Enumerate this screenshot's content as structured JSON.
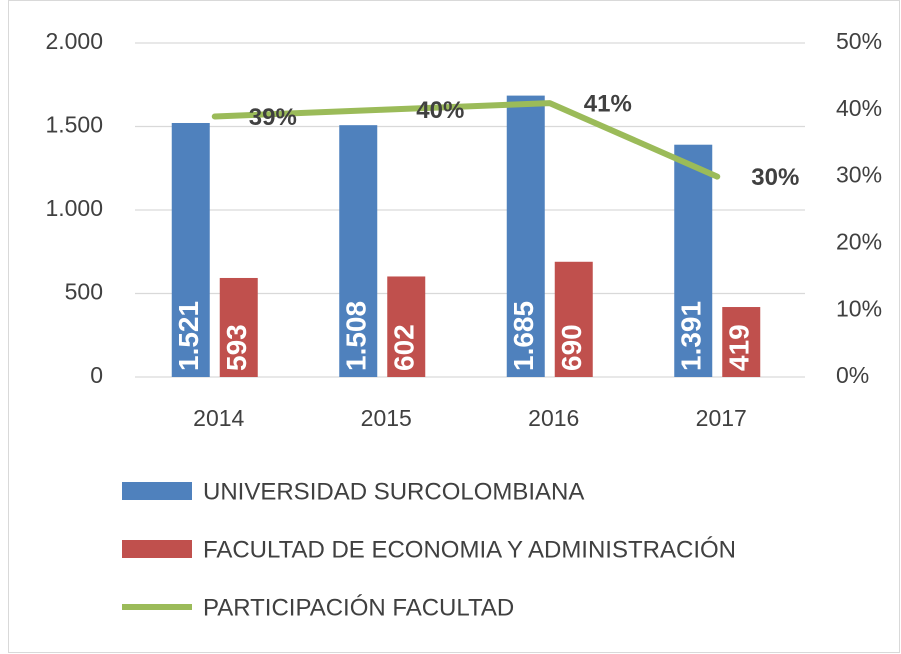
{
  "chart_data": {
    "type": "bar_line",
    "categories": [
      "2014",
      "2015",
      "2016",
      "2017"
    ],
    "series": [
      {
        "name": "UNIVERSIDAD SURCOLOMBIANA",
        "type": "bar",
        "color": "#4f81bd",
        "values": [
          1521,
          1508,
          1685,
          1391
        ],
        "value_labels": [
          "1.521",
          "1.508",
          "1.685",
          "1.391"
        ]
      },
      {
        "name": "FACULTAD DE ECONOMIA Y ADMINISTRACIÓN",
        "type": "bar",
        "color": "#c0504d",
        "values": [
          593,
          602,
          690,
          419
        ]
      },
      {
        "name": "PARTICIPACIÓN FACULTAD",
        "type": "line",
        "axis": "y2",
        "color": "#9bbb59",
        "values": [
          39,
          40,
          41,
          30
        ],
        "value_labels": [
          "39%",
          "40%",
          "41%",
          "30%"
        ]
      }
    ],
    "ylim": [
      0,
      2000
    ],
    "yticks": [
      0,
      500,
      {
        "value": 1000,
        "label": "1.000"
      },
      {
        "value": 1500,
        "label": "1.500"
      },
      {
        "value": 2000,
        "label": "2.000"
      }
    ],
    "y2lim": [
      0,
      50
    ],
    "y2ticks": [
      {
        "value": 0,
        "label": "0%"
      },
      {
        "value": 10,
        "label": "10%"
      },
      {
        "value": 20,
        "label": "20%"
      },
      {
        "value": 30,
        "label": "30%"
      },
      {
        "value": 40,
        "label": "40%"
      },
      {
        "value": 50,
        "label": "50%"
      }
    ],
    "grid": true,
    "legend": "bottom"
  }
}
